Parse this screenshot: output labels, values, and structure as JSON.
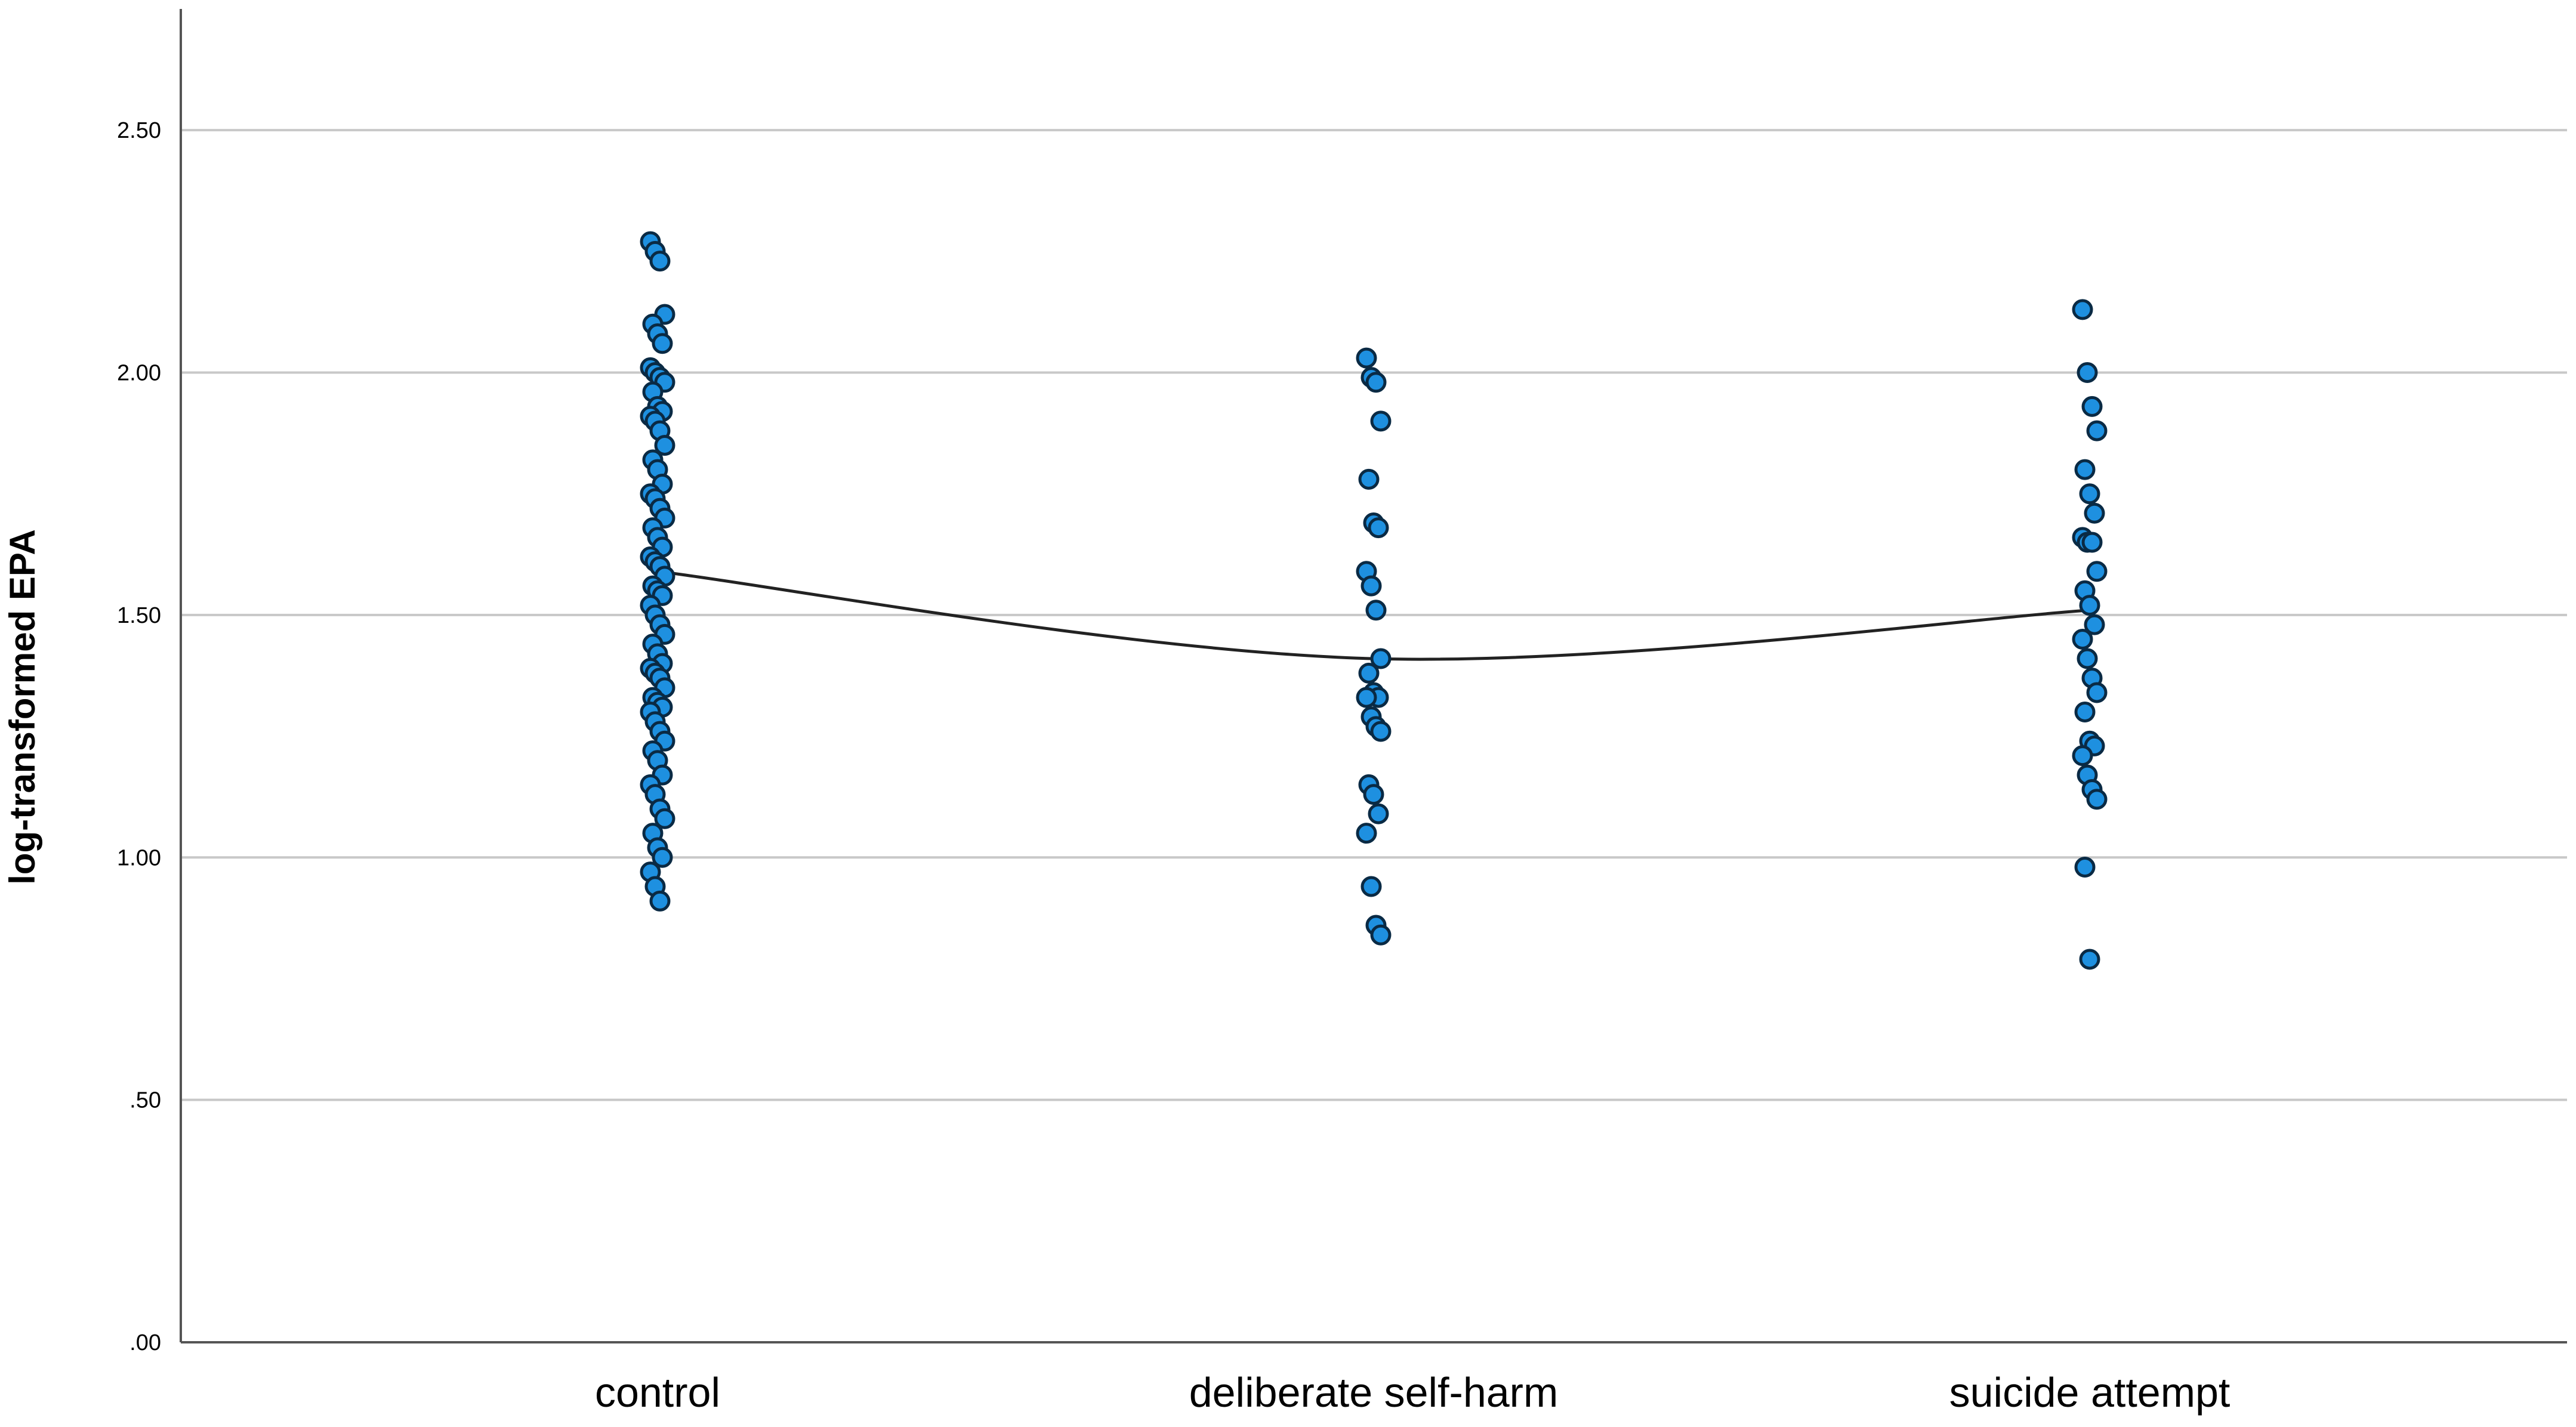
{
  "chart_data": {
    "type": "scatter",
    "ylabel": "log-transformed EPA",
    "xlabel": "",
    "title": "",
    "categories": [
      "control",
      "deliberate self-harm",
      "suicide attempt"
    ],
    "ylim": [
      0,
      2.75
    ],
    "yticks": [
      0,
      0.5,
      1.0,
      1.5,
      2.0,
      2.5
    ],
    "ytick_labels": [
      ".00",
      ".50",
      "1.00",
      "1.50",
      "2.00",
      "2.50"
    ],
    "grid": true,
    "point_color": "#1e90e0",
    "point_edge_color": "#0a2a44",
    "line_color": "#222222",
    "points": [
      [
        2.27,
        2.25,
        2.23,
        2.12,
        2.1,
        2.08,
        2.06,
        2.01,
        2.0,
        1.99,
        1.98,
        1.96,
        1.93,
        1.92,
        1.91,
        1.9,
        1.88,
        1.85,
        1.82,
        1.8,
        1.77,
        1.75,
        1.74,
        1.72,
        1.7,
        1.68,
        1.66,
        1.64,
        1.62,
        1.61,
        1.6,
        1.58,
        1.56,
        1.55,
        1.54,
        1.52,
        1.5,
        1.48,
        1.46,
        1.44,
        1.42,
        1.4,
        1.39,
        1.38,
        1.37,
        1.35,
        1.33,
        1.32,
        1.31,
        1.3,
        1.28,
        1.26,
        1.24,
        1.22,
        1.2,
        1.17,
        1.15,
        1.13,
        1.1,
        1.08,
        1.05,
        1.02,
        1.0,
        0.97,
        0.94,
        0.91
      ],
      [
        2.03,
        1.99,
        1.98,
        1.9,
        1.78,
        1.69,
        1.68,
        1.59,
        1.56,
        1.51,
        1.41,
        1.38,
        1.34,
        1.33,
        1.33,
        1.29,
        1.27,
        1.26,
        1.15,
        1.13,
        1.09,
        1.05,
        0.94,
        0.86,
        0.84
      ],
      [
        2.13,
        2.0,
        1.93,
        1.88,
        1.8,
        1.75,
        1.71,
        1.66,
        1.65,
        1.65,
        1.59,
        1.55,
        1.52,
        1.48,
        1.45,
        1.41,
        1.37,
        1.34,
        1.3,
        1.24,
        1.23,
        1.21,
        1.17,
        1.14,
        1.12,
        0.98,
        0.79
      ]
    ],
    "line": [
      1.59,
      1.41,
      1.51
    ]
  }
}
